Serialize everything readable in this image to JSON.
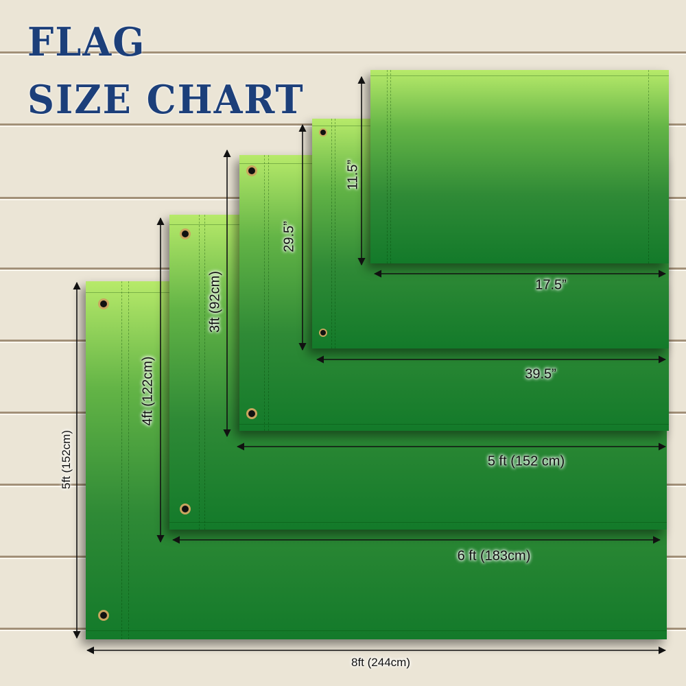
{
  "title": {
    "line1": "FLAG",
    "line2": "SIZE CHART",
    "color": "#1c3f7a"
  },
  "flags": [
    {
      "size": "8ft x 5ft",
      "width_label": "8ft (244cm)",
      "height_label": "5ft (152cm)"
    },
    {
      "size": "6ft x 4ft",
      "width_label": "6 ft (183cm)",
      "height_label": "4ft (122cm)"
    },
    {
      "size": "5ft x 3ft",
      "width_label": "5 ft (152 cm)",
      "height_label": "3ft (92cm)"
    },
    {
      "size": "39.5in x 29.5in",
      "width_label": "39.5”",
      "height_label": "29.5”"
    },
    {
      "size": "17.5in x 11.5in",
      "width_label": "17.5”",
      "height_label": "11.5”"
    }
  ],
  "colors": {
    "flag_top": "#b7ea6a",
    "flag_bottom": "#137a2a",
    "grommet": "#c9a55f",
    "background": "#ebe5d6"
  }
}
